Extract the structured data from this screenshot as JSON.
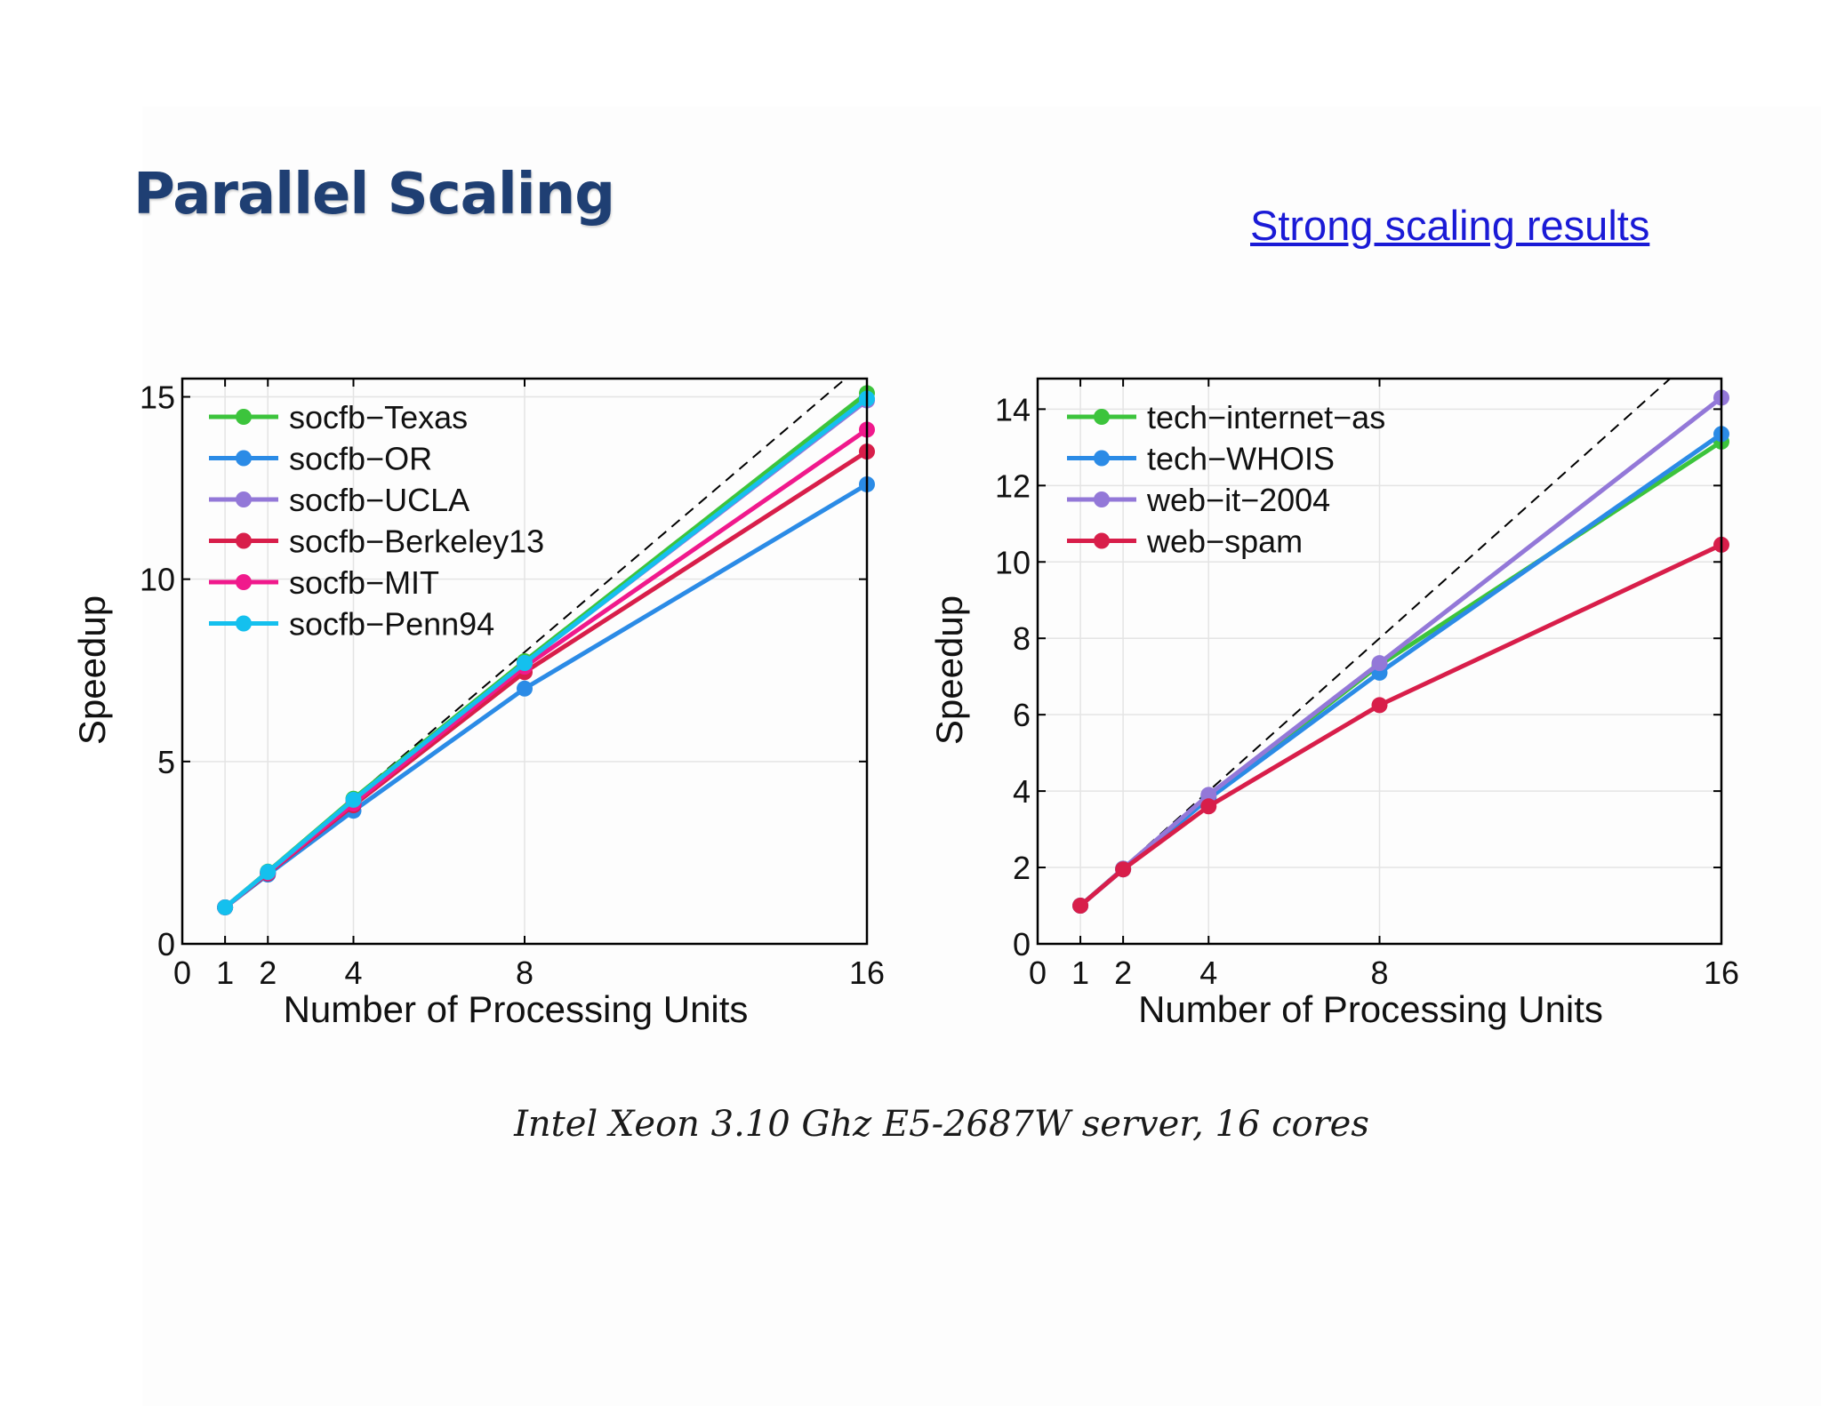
{
  "slide": {
    "title": "Parallel Scaling",
    "link_text": "Strong scaling results",
    "caption": "Intel Xeon 3.10 Ghz E5-2687W server, 16 cores"
  },
  "colors": {
    "title": "#1f3f73",
    "link": "#1a1ad6",
    "ideal_line": "#000000"
  },
  "chart_data": [
    {
      "type": "line",
      "xlabel": "Number of Processing Units",
      "ylabel": "Speedup",
      "xlim": [
        0,
        16
      ],
      "ylim": [
        0,
        15.5
      ],
      "xticks": [
        0,
        1,
        2,
        4,
        8,
        16
      ],
      "yticks": [
        0,
        5,
        10,
        15
      ],
      "grid": true,
      "legend_position": "top-left",
      "ideal_line": "dashed y = x",
      "x": [
        1,
        2,
        4,
        8,
        16
      ],
      "series": [
        {
          "name": "socfb−Texas",
          "color": "#3cc43c",
          "values": [
            1,
            1.98,
            3.98,
            7.75,
            15.1
          ]
        },
        {
          "name": "socfb−OR",
          "color": "#2b8be6",
          "values": [
            1,
            1.9,
            3.65,
            7.0,
            12.6
          ]
        },
        {
          "name": "socfb−UCLA",
          "color": "#9378d8",
          "values": [
            1,
            1.95,
            3.9,
            7.7,
            14.9
          ]
        },
        {
          "name": "socfb−Berkeley13",
          "color": "#d81e4a",
          "values": [
            1,
            1.93,
            3.8,
            7.45,
            13.5
          ]
        },
        {
          "name": "socfb−MIT",
          "color": "#f0198c",
          "values": [
            1,
            1.95,
            3.85,
            7.6,
            14.1
          ]
        },
        {
          "name": "socfb−Penn94",
          "color": "#14c0ee",
          "values": [
            1,
            1.97,
            3.95,
            7.7,
            14.95
          ]
        }
      ]
    },
    {
      "type": "line",
      "xlabel": "Number of Processing Units",
      "ylabel": "Speedup",
      "xlim": [
        0,
        16
      ],
      "ylim": [
        0,
        14.8
      ],
      "xticks": [
        0,
        1,
        2,
        4,
        8,
        16
      ],
      "yticks": [
        0,
        2,
        4,
        6,
        8,
        10,
        12,
        14
      ],
      "grid": true,
      "legend_position": "top-left",
      "ideal_line": "dashed y = x",
      "x": [
        1,
        2,
        4,
        8,
        16
      ],
      "series": [
        {
          "name": "tech−internet−as",
          "color": "#3cc43c",
          "values": [
            1,
            1.97,
            3.85,
            7.3,
            13.15
          ]
        },
        {
          "name": "tech−WHOIS",
          "color": "#2b8be6",
          "values": [
            1,
            1.95,
            3.8,
            7.1,
            13.35
          ]
        },
        {
          "name": "web−it−2004",
          "color": "#9378d8",
          "values": [
            1,
            1.97,
            3.9,
            7.35,
            14.3
          ]
        },
        {
          "name": "web−spam",
          "color": "#d81e4a",
          "values": [
            1,
            1.95,
            3.6,
            6.25,
            10.45
          ]
        }
      ]
    }
  ]
}
